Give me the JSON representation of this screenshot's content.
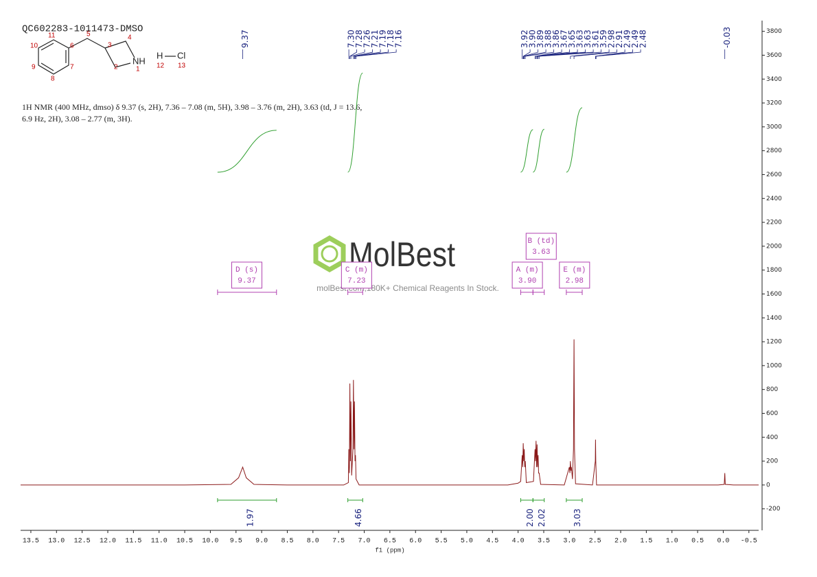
{
  "chart_data": {
    "type": "line",
    "title": "QC602283-1011473-DMSO",
    "description": [
      "1H NMR (400 MHz, dmso) δ 9.37 (s, 2H), 7.36 – 7.08 (m, 5H), 3.98 – 3.76 (m, 2H), 3.63 (td, J = 13.6,",
      "6.9 Hz, 2H), 3.08 – 2.77 (m, 3H)."
    ],
    "structure_labels": [
      "11",
      "5",
      "4",
      "10",
      "6",
      "3",
      "NH",
      "H",
      "Cl",
      "9",
      "7",
      "2",
      "1",
      "12",
      "13",
      "8"
    ],
    "watermark": [
      "MolBest",
      "molBest.com,180K+ Chemical Reagents In Stock."
    ],
    "xlabel": "f1 (ppm)",
    "xlim": [
      13.7,
      -0.69
    ],
    "ylim": [
      -380,
      3890
    ],
    "xticks": [
      13.5,
      {
        "value": 13,
        "label": "13.0"
      },
      12.5,
      {
        "value": 12,
        "label": "12.0"
      },
      11.5,
      {
        "value": 11,
        "label": "11.0"
      },
      10.5,
      {
        "value": 10,
        "label": "10.0"
      },
      9.5,
      {
        "value": 9,
        "label": "9.0"
      },
      8.5,
      {
        "value": 8,
        "label": "8.0"
      },
      7.5,
      {
        "value": 7,
        "label": "7.0"
      },
      6.5,
      {
        "value": 6,
        "label": "6.0"
      },
      5.5,
      {
        "value": 5,
        "label": "5.0"
      },
      4.5,
      {
        "value": 4,
        "label": "4.0"
      },
      3.5,
      {
        "value": 3,
        "label": "3.0"
      },
      2.5,
      {
        "value": 2,
        "label": "2.0"
      },
      1.5,
      {
        "value": 1,
        "label": "1.0"
      },
      0.5,
      {
        "value": 0,
        "label": "0.0"
      },
      -0.5
    ],
    "yticks": [
      -200,
      0,
      200,
      400,
      600,
      800,
      1000,
      1200,
      1400,
      1600,
      1800,
      2000,
      2200,
      2400,
      2600,
      2800,
      3000,
      3200,
      3400,
      3600,
      3800
    ],
    "color": "#8b1a1a",
    "x": [
      13.7,
      10.5,
      9.6,
      9.45,
      9.37,
      9.3,
      9.15,
      8.5,
      7.4,
      7.31,
      7.3,
      7.29,
      7.28,
      7.27,
      7.26,
      7.245,
      7.22,
      7.21,
      7.2,
      7.19,
      7.18,
      7.17,
      7.16,
      7.1,
      4.2,
      4.0,
      3.95,
      3.92,
      3.91,
      3.9,
      3.89,
      3.88,
      3.87,
      3.86,
      3.84,
      3.7,
      3.67,
      3.66,
      3.65,
      3.64,
      3.63,
      3.62,
      3.61,
      3.6,
      3.59,
      3.56,
      3.1,
      3.0,
      2.99,
      2.98,
      2.97,
      2.96,
      2.94,
      2.92,
      2.91,
      2.9,
      2.88,
      2.55,
      2.495,
      2.49,
      2.485,
      2.47,
      0.1,
      -0.02,
      -0.03,
      -0.04,
      -0.2,
      -0.69
    ],
    "values": [
      0,
      0,
      5,
      60,
      150,
      60,
      5,
      0,
      0,
      20,
      300,
      100,
      850,
      200,
      700,
      80,
      300,
      880,
      300,
      700,
      200,
      250,
      50,
      0,
      0,
      15,
      30,
      250,
      150,
      350,
      200,
      300,
      150,
      200,
      20,
      30,
      300,
      200,
      370,
      150,
      340,
      150,
      250,
      100,
      100,
      5,
      0,
      150,
      100,
      200,
      120,
      150,
      50,
      300,
      1220,
      300,
      10,
      0,
      200,
      380,
      200,
      0,
      0,
      5,
      100,
      5,
      0,
      0
    ],
    "peak_labels": [
      9.37,
      {
        "value": 7.3,
        "label": "7.30"
      },
      7.28,
      7.26,
      7.21,
      7.19,
      7.18,
      7.16,
      3.92,
      {
        "value": 3.9,
        "label": "3.90"
      },
      3.89,
      3.88,
      3.86,
      3.67,
      3.65,
      3.63,
      3.63,
      3.61,
      3.59,
      2.98,
      2.91,
      2.49,
      2.49,
      2.48,
      -0.03
    ],
    "integrals": [
      {
        "range": [
          9.86,
          8.71
        ],
        "value": 1.97
      },
      {
        "range": [
          7.32,
          7.03
        ],
        "value": 4.66
      },
      {
        "range": [
          3.95,
          3.71
        ],
        "value": {
          "value": 2,
          "label": "2.00"
        }
      },
      {
        "range": [
          3.71,
          3.49
        ],
        "value": 2.02
      },
      {
        "range": [
          3.06,
          2.75
        ],
        "value": 3.03
      }
    ],
    "multiplets": [
      {
        "label": "D (s)",
        "shift": 9.37,
        "range": [
          9.86,
          8.71
        ]
      },
      {
        "label": "C (m)",
        "shift": 7.23,
        "range": [
          7.32,
          7.03
        ]
      },
      {
        "label": "A (m)",
        "shift": {
          "value": 3.9,
          "label": "3.90"
        },
        "range": [
          3.95,
          3.71
        ]
      },
      {
        "label": "B (td)",
        "shift": 3.63,
        "range": [
          3.71,
          3.49
        ]
      },
      {
        "label": "E (m)",
        "shift": 2.98,
        "range": [
          3.06,
          2.75
        ]
      }
    ]
  }
}
